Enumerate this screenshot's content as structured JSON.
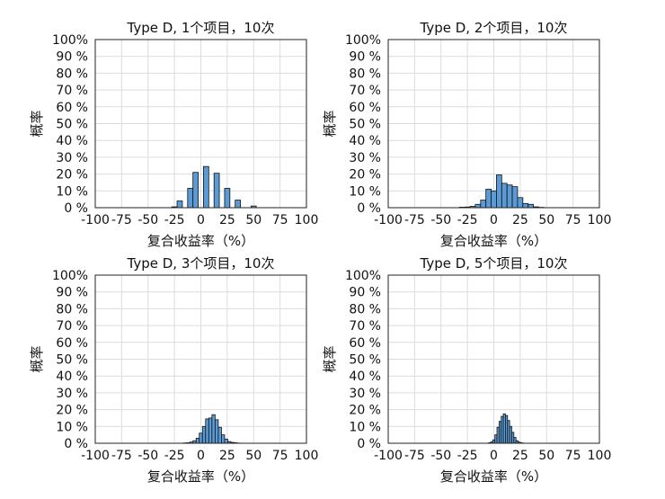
{
  "chart_data": [
    {
      "type": "bar",
      "title": "Type D, 1个项目，10次",
      "xlabel": "复合收益率（%）",
      "ylabel": "概率",
      "xlim": [
        -100,
        100
      ],
      "ylim": [
        0,
        100
      ],
      "xticks": [
        "-100",
        "-75",
        "-50",
        "-25",
        "0",
        "25",
        "50",
        "75",
        "100"
      ],
      "yticks": [
        "0 %",
        "10 %",
        "20 %",
        "30 %",
        "40 %",
        "50 %",
        "60 %",
        "70 %",
        "80 %",
        "90 %",
        "100%"
      ],
      "grid": true,
      "bin_width": 5,
      "x": [
        -30,
        -25,
        -20,
        -15,
        -10,
        -5,
        0,
        5,
        10,
        15,
        20,
        25,
        30,
        35,
        40,
        45,
        50
      ],
      "values": [
        0,
        0.5,
        4,
        0,
        11.5,
        21,
        0,
        24.5,
        0,
        20.5,
        0,
        11.5,
        0,
        4.5,
        0,
        0,
        1
      ]
    },
    {
      "type": "bar",
      "title": "Type D, 2个项目，10次",
      "xlabel": "复合收益率（%）",
      "ylabel": "概率",
      "xlim": [
        -100,
        100
      ],
      "ylim": [
        0,
        100
      ],
      "xticks": [
        "-100",
        "-75",
        "-50",
        "-25",
        "0",
        "25",
        "50",
        "75",
        "100"
      ],
      "yticks": [
        "0 %",
        "10 %",
        "20 %",
        "30 %",
        "40 %",
        "50 %",
        "60 %",
        "70 %",
        "80 %",
        "90 %",
        "100%"
      ],
      "grid": true,
      "bin_width": 5,
      "x": [
        -55,
        -50,
        -45,
        -40,
        -35,
        -30,
        -25,
        -20,
        -15,
        -10,
        -5,
        0,
        5,
        10,
        15,
        20,
        25,
        30,
        35,
        40,
        45,
        50,
        55
      ],
      "values": [
        0,
        0,
        0,
        0,
        0,
        0.3,
        0.4,
        0.8,
        2,
        4.5,
        11,
        10,
        19.5,
        14.5,
        13.5,
        12.5,
        6,
        2.5,
        2,
        0.5,
        0.2,
        0,
        0
      ]
    },
    {
      "type": "bar",
      "title": "Type D, 3个项目，10次",
      "xlabel": "复合收益率（%）",
      "ylabel": "概率",
      "xlim": [
        -100,
        100
      ],
      "ylim": [
        0,
        100
      ],
      "xticks": [
        "-100",
        "-75",
        "-50",
        "-25",
        "0",
        "25",
        "50",
        "75",
        "100"
      ],
      "yticks": [
        "0 %",
        "10 %",
        "20 %",
        "30 %",
        "40 %",
        "50 %",
        "60 %",
        "70 %",
        "80 %",
        "90 %",
        "100%"
      ],
      "grid": true,
      "bin_width": 3,
      "x": [
        -15,
        -12,
        -9,
        -6,
        -3,
        0,
        3,
        6,
        9,
        12,
        15,
        18,
        21,
        24,
        27,
        30,
        33,
        36
      ],
      "values": [
        0.2,
        0.3,
        0.7,
        1.5,
        3,
        6,
        10,
        14.5,
        15,
        17,
        14,
        9.5,
        5,
        2.5,
        1,
        0.5,
        0.3,
        0.1
      ]
    },
    {
      "type": "bar",
      "title": "Type D, 5个项目，10次",
      "xlabel": "复合收益率（%）",
      "ylabel": "概率",
      "xlim": [
        -100,
        100
      ],
      "ylim": [
        0,
        100
      ],
      "xticks": [
        "-100",
        "-75",
        "-50",
        "-25",
        "0",
        "25",
        "50",
        "75",
        "100"
      ],
      "yticks": [
        "0 %",
        "10 %",
        "20 %",
        "30 %",
        "40 %",
        "50 %",
        "60 %",
        "70 %",
        "80 %",
        "90 %",
        "100%"
      ],
      "grid": true,
      "bin_width": 2,
      "x": [
        -4,
        -2,
        0,
        2,
        4,
        6,
        8,
        10,
        12,
        14,
        16,
        18,
        20,
        22,
        24,
        26,
        28
      ],
      "values": [
        0.3,
        0.8,
        2,
        5,
        9.5,
        13,
        16,
        17.5,
        16.5,
        13.5,
        10,
        6.5,
        3.5,
        1.5,
        0.7,
        0.3,
        0.1
      ]
    }
  ]
}
